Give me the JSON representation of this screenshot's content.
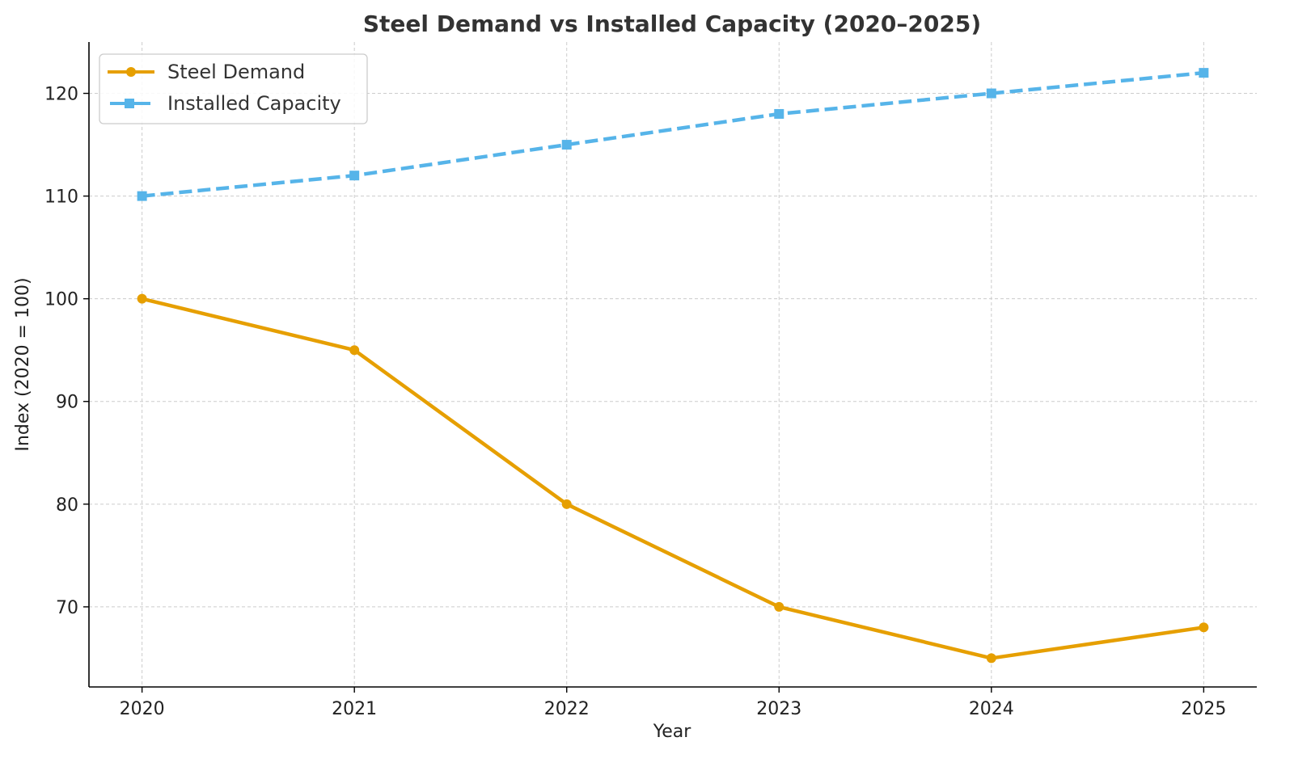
{
  "chart_data": {
    "type": "line",
    "title": "Steel Demand vs Installed Capacity (2020–2025)",
    "xlabel": "Year",
    "ylabel": "Index (2020 = 100)",
    "x": [
      2020,
      2021,
      2022,
      2023,
      2024,
      2025
    ],
    "x_tick_labels": [
      "2020",
      "2021",
      "2022",
      "2023",
      "2024",
      "2025"
    ],
    "y_ticks": [
      70,
      80,
      90,
      100,
      110,
      120
    ],
    "y_tick_labels": [
      "70",
      "80",
      "90",
      "100",
      "110",
      "120"
    ],
    "xlim": [
      2019.75,
      2025.25
    ],
    "ylim": [
      62.2,
      125
    ],
    "grid": true,
    "legend_position": "top-left",
    "series": [
      {
        "name": "Steel Demand",
        "values": [
          100,
          95,
          80,
          70,
          65,
          68
        ],
        "color": "#E69F00",
        "line_style": "solid",
        "marker": "circle"
      },
      {
        "name": "Installed Capacity",
        "values": [
          110,
          112,
          115,
          118,
          120,
          122
        ],
        "color": "#56B4E9",
        "line_style": "dashed",
        "marker": "square"
      }
    ]
  }
}
